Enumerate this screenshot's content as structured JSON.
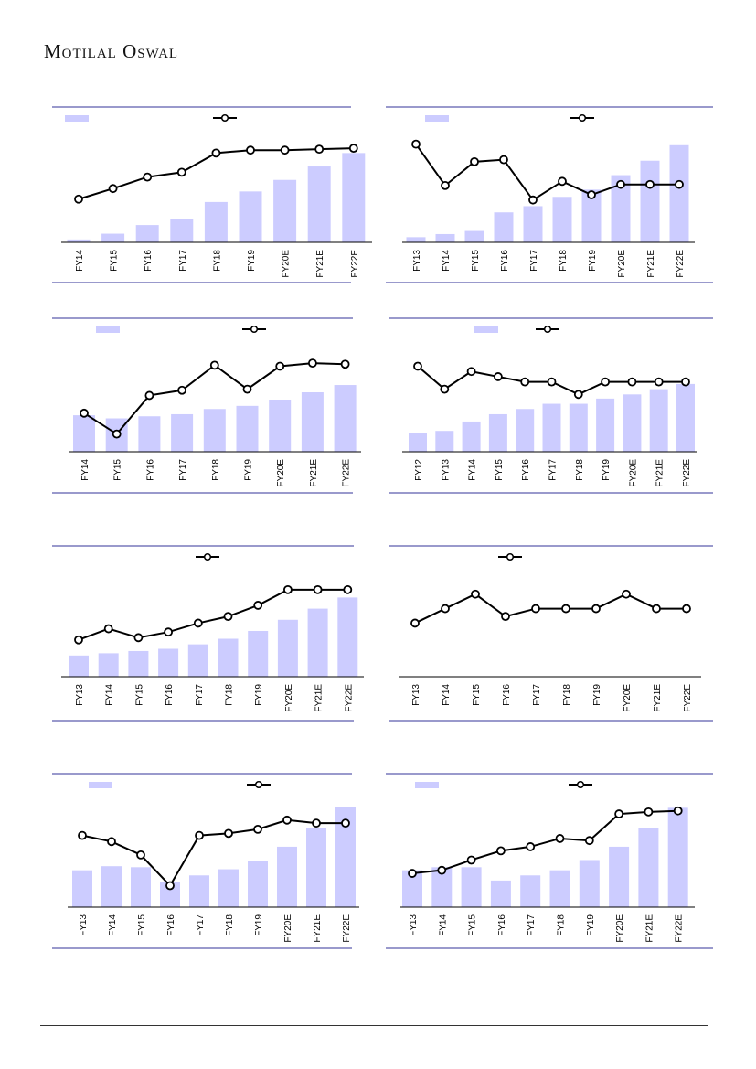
{
  "header": {
    "brand": "Motilal Oswal"
  },
  "colors": {
    "bar": "#ccccff",
    "line": "#000000",
    "rule": "#333399",
    "marker_fill": "#ffffff"
  },
  "chart_data": [
    {
      "type": "bar+line",
      "categories": [
        "FY14",
        "FY15",
        "FY16",
        "FY17",
        "FY18",
        "FY19",
        "FY20E",
        "FY21E",
        "FY22E"
      ],
      "bars": [
        0.03,
        0.09,
        0.18,
        0.24,
        0.42,
        0.53,
        0.65,
        0.79,
        0.93
      ],
      "line": [
        0.45,
        0.56,
        0.68,
        0.73,
        0.93,
        0.96,
        0.96,
        0.97,
        0.98
      ],
      "legend": [
        "bar",
        "line"
      ]
    },
    {
      "type": "bar+line",
      "categories": [
        "FY13",
        "FY14",
        "FY15",
        "FY16",
        "FY17",
        "FY18",
        "FY19",
        "FY20E",
        "FY21E",
        "FY22E"
      ],
      "bars": [
        0.05,
        0.08,
        0.11,
        0.29,
        0.35,
        0.44,
        0.51,
        0.65,
        0.79,
        0.94
      ],
      "line": [
        0.95,
        0.55,
        0.78,
        0.8,
        0.41,
        0.59,
        0.46,
        0.56,
        0.56,
        0.56
      ],
      "legend": [
        "bar",
        "line"
      ]
    },
    {
      "type": "bar+line",
      "categories": [
        "FY14",
        "FY15",
        "FY16",
        "FY17",
        "FY18",
        "FY19",
        "FY20E",
        "FY21E",
        "FY22E"
      ],
      "bars": [
        0.35,
        0.32,
        0.34,
        0.36,
        0.41,
        0.44,
        0.5,
        0.57,
        0.64
      ],
      "line": [
        0.37,
        0.17,
        0.54,
        0.59,
        0.83,
        0.6,
        0.82,
        0.85,
        0.84
      ],
      "legend": [
        "bar",
        "line"
      ]
    },
    {
      "type": "bar+line",
      "categories": [
        "FY12",
        "FY13",
        "FY14",
        "FY15",
        "FY16",
        "FY17",
        "FY18",
        "FY19",
        "FY20E",
        "FY21E",
        "FY22E"
      ],
      "bars": [
        0.18,
        0.2,
        0.29,
        0.36,
        0.41,
        0.46,
        0.46,
        0.51,
        0.55,
        0.6,
        0.65
      ],
      "line": [
        0.82,
        0.6,
        0.77,
        0.72,
        0.67,
        0.67,
        0.55,
        0.67,
        0.67,
        0.67,
        0.67
      ],
      "legend": [
        "bar",
        "line"
      ]
    },
    {
      "type": "bar+line",
      "categories": [
        "FY13",
        "FY14",
        "FY15",
        "FY16",
        "FY17",
        "FY18",
        "FY19",
        "FY20E",
        "FY21E",
        "FY22E"
      ],
      "bars": [
        0.19,
        0.21,
        0.23,
        0.25,
        0.29,
        0.34,
        0.41,
        0.51,
        0.61,
        0.71
      ],
      "line": [
        0.33,
        0.43,
        0.35,
        0.4,
        0.48,
        0.54,
        0.64,
        0.78,
        0.78,
        0.78
      ],
      "legend": [
        "line"
      ]
    },
    {
      "type": "line",
      "categories": [
        "FY13",
        "FY14",
        "FY15",
        "FY16",
        "FY17",
        "FY18",
        "FY19",
        "FY20E",
        "FY21E",
        "FY22E"
      ],
      "line": [
        0.48,
        0.61,
        0.74,
        0.54,
        0.61,
        0.61,
        0.61,
        0.74,
        0.61,
        0.61
      ],
      "legend": [
        "line"
      ]
    },
    {
      "type": "bar+line",
      "categories": [
        "FY13",
        "FY14",
        "FY15",
        "FY16",
        "FY17",
        "FY18",
        "FY19",
        "FY20E",
        "FY21E",
        "FY22E"
      ],
      "bars": [
        0.36,
        0.4,
        0.39,
        0.25,
        0.31,
        0.37,
        0.45,
        0.59,
        0.77,
        0.98
      ],
      "line": [
        0.7,
        0.64,
        0.51,
        0.21,
        0.7,
        0.72,
        0.76,
        0.85,
        0.82,
        0.82
      ],
      "legend": [
        "bar",
        "line"
      ]
    },
    {
      "type": "bar+line",
      "categories": [
        "FY13",
        "FY14",
        "FY15",
        "FY16",
        "FY17",
        "FY18",
        "FY19",
        "FY20E",
        "FY21E",
        "FY22E"
      ],
      "bars": [
        0.36,
        0.39,
        0.39,
        0.26,
        0.31,
        0.36,
        0.46,
        0.59,
        0.77,
        0.97
      ],
      "line": [
        0.33,
        0.36,
        0.46,
        0.55,
        0.59,
        0.67,
        0.65,
        0.91,
        0.93,
        0.94
      ],
      "legend": [
        "bar",
        "line"
      ]
    }
  ]
}
